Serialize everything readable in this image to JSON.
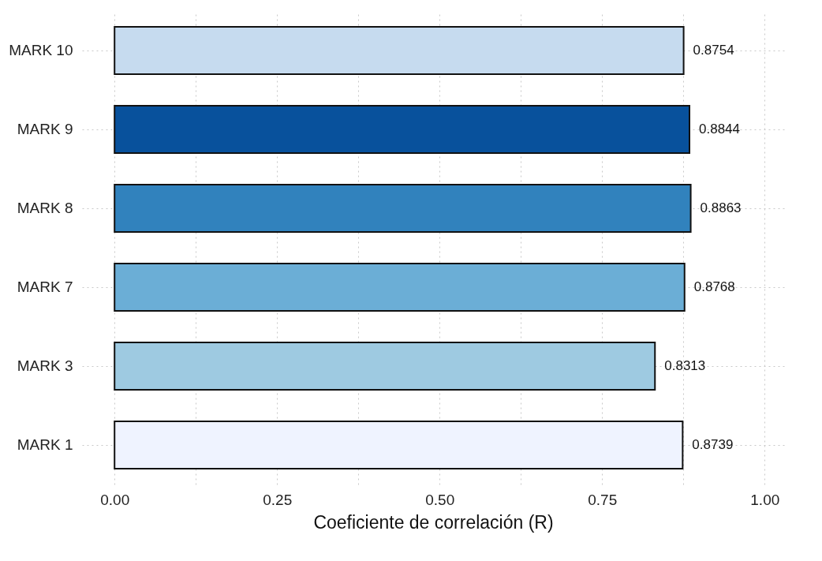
{
  "chart_data": {
    "type": "bar",
    "orientation": "horizontal",
    "xlabel": "Coeficiente de correlación (R)",
    "categories": [
      "MARK 10",
      "MARK 9",
      "MARK 8",
      "MARK 7",
      "MARK 3",
      "MARK 1"
    ],
    "values": [
      0.8754,
      0.8844,
      0.8863,
      0.8768,
      0.8313,
      0.8739
    ],
    "colors": [
      "#c6dbef",
      "#08519c",
      "#3182bd",
      "#6baed6",
      "#9ecae1",
      "#eff3ff"
    ],
    "data_labels": true,
    "xlim": [
      -0.05,
      1.03
    ],
    "xticks": [
      {
        "value": 0,
        "label": "0.00"
      },
      {
        "value": 0.125,
        "label": null
      },
      {
        "value": 0.25,
        "label": "0.25"
      },
      {
        "value": 0.375,
        "label": null
      },
      {
        "value": 0.5,
        "label": "0.50"
      },
      {
        "value": 0.625,
        "label": null
      },
      {
        "value": 0.75,
        "label": "0.75"
      },
      {
        "value": 0.875,
        "label": null
      },
      {
        "value": 1,
        "label": "1.00"
      }
    ],
    "grid": true,
    "legend": false
  }
}
